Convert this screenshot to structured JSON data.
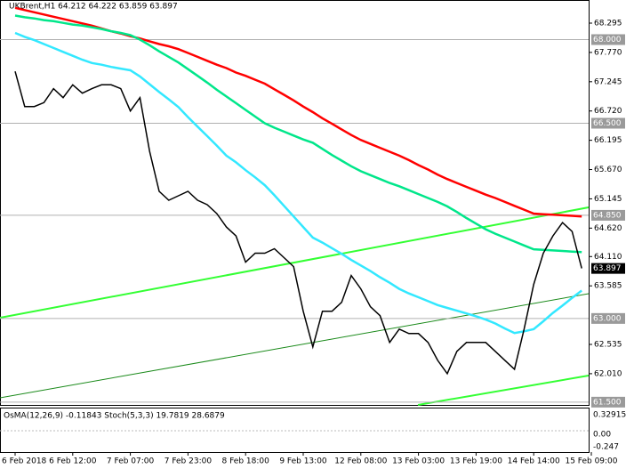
{
  "chart_data": {
    "type": "line",
    "title": "UKBrent,H1  64.212 64.222 63.859 63.897",
    "categories": [
      "6 Feb 2018",
      null,
      null,
      null,
      null,
      null,
      "6 Feb 12:00",
      null,
      null,
      null,
      null,
      null,
      "7 Feb 07:00",
      null,
      null,
      null,
      null,
      null,
      "7 Feb 23:00",
      null,
      null,
      null,
      null,
      null,
      "8 Feb 18:00",
      null,
      null,
      null,
      null,
      null,
      "9 Feb 13:00",
      null,
      null,
      null,
      null,
      null,
      "12 Feb 08:00",
      null,
      null,
      null,
      null,
      null,
      "13 Feb 03:00",
      null,
      null,
      null,
      null,
      null,
      "13 Feb 19:00",
      null,
      null,
      null,
      null,
      null,
      "14 Feb 14:00",
      null,
      null,
      null,
      null,
      null,
      "15 Feb 09:00"
    ],
    "series": [
      {
        "color": "#ff0000",
        "values": [
          68.57,
          68.53,
          68.49,
          68.45,
          68.41,
          68.37,
          68.33,
          68.29,
          68.25,
          68.2,
          68.15,
          68.11,
          68.06,
          68.02,
          67.97,
          67.92,
          67.88,
          67.83,
          67.76,
          67.69,
          67.62,
          67.55,
          67.49,
          67.41,
          67.35,
          67.28,
          67.21,
          67.11,
          67.01,
          66.91,
          66.8,
          66.7,
          66.59,
          66.49,
          66.39,
          66.29,
          66.2,
          66.13,
          66.06,
          65.99,
          65.92,
          65.84,
          65.75,
          65.67,
          65.58,
          65.5,
          65.43,
          65.36,
          65.29,
          65.22,
          65.16,
          65.09,
          65.02,
          64.95,
          64.88,
          64.87,
          64.86,
          64.85,
          64.84,
          64.83,
          null
        ]
      },
      {
        "color": "#00e68a",
        "values": [
          68.43,
          68.4,
          68.38,
          68.35,
          68.33,
          68.3,
          68.27,
          68.25,
          68.22,
          68.19,
          68.15,
          68.12,
          68.08,
          68.0,
          67.9,
          67.79,
          67.69,
          67.59,
          67.47,
          67.35,
          67.23,
          67.1,
          66.98,
          66.86,
          66.74,
          66.62,
          66.5,
          66.42,
          66.35,
          66.28,
          66.21,
          66.15,
          66.04,
          65.93,
          65.83,
          65.73,
          65.64,
          65.57,
          65.5,
          65.43,
          65.37,
          65.3,
          65.23,
          65.16,
          65.09,
          65.01,
          64.91,
          64.8,
          64.7,
          64.6,
          64.52,
          64.45,
          64.38,
          64.31,
          64.24,
          64.23,
          64.22,
          64.21,
          64.2,
          64.19,
          null
        ]
      },
      {
        "color": "#33e8ff",
        "values": [
          68.12,
          68.05,
          67.99,
          67.92,
          67.85,
          67.78,
          67.71,
          67.64,
          67.58,
          67.55,
          67.51,
          67.48,
          67.45,
          67.34,
          67.2,
          67.06,
          66.93,
          66.79,
          66.61,
          66.44,
          66.27,
          66.1,
          65.92,
          65.8,
          65.66,
          65.53,
          65.39,
          65.21,
          65.02,
          64.83,
          64.64,
          64.45,
          64.36,
          64.26,
          64.16,
          64.05,
          63.95,
          63.85,
          63.74,
          63.64,
          63.53,
          63.45,
          63.38,
          63.31,
          63.24,
          63.19,
          63.14,
          63.09,
          63.04,
          62.98,
          62.91,
          62.82,
          62.74,
          62.77,
          62.81,
          62.95,
          63.1,
          63.23,
          63.37,
          63.5,
          null
        ]
      },
      {
        "color": "#000000",
        "values": [
          67.43,
          66.8,
          66.8,
          66.87,
          67.12,
          66.96,
          67.19,
          67.04,
          67.12,
          67.19,
          67.19,
          67.12,
          66.72,
          66.96,
          66.0,
          65.28,
          65.12,
          65.2,
          65.28,
          65.12,
          65.04,
          64.88,
          64.64,
          64.48,
          64.01,
          64.17,
          64.17,
          64.25,
          64.09,
          63.93,
          63.13,
          62.49,
          63.13,
          63.13,
          63.29,
          63.77,
          63.53,
          63.21,
          63.05,
          62.57,
          62.81,
          62.73,
          62.73,
          62.57,
          62.25,
          62.01,
          62.41,
          62.57,
          62.57,
          62.57,
          62.41,
          62.25,
          62.09,
          62.81,
          63.61,
          64.17,
          64.48,
          64.72,
          64.56,
          63.897,
          null
        ]
      }
    ],
    "ylim": [
      61.45,
      68.71
    ],
    "yticks": [
      68.295,
      {
        "value": 67.77,
        "label": "67.770"
      },
      67.245,
      {
        "value": 66.72,
        "label": "66.720"
      },
      66.195,
      {
        "value": 65.67,
        "label": "65.670"
      },
      65.145,
      {
        "value": 64.62,
        "label": "64.620"
      },
      {
        "value": 64.11,
        "label": "64.110"
      },
      63.585,
      62.535,
      {
        "value": 62.01,
        "label": "62.010"
      }
    ],
    "levels": [
      {
        "value": 68,
        "label": "68.000"
      },
      {
        "value": 66.5,
        "label": "66.500"
      },
      {
        "value": 64.85,
        "label": "64.850"
      },
      {
        "value": 63,
        "label": "63.000"
      },
      {
        "value": 61.5,
        "label": "61.500"
      }
    ],
    "last": 63.897,
    "indicator": {
      "label": "OsMA(12,26,9) -0.11843  Stoch(5,3,3) 19.7819 28.6879",
      "axis_labels": [
        "0.32915",
        "0.00",
        "-0.247"
      ]
    }
  }
}
